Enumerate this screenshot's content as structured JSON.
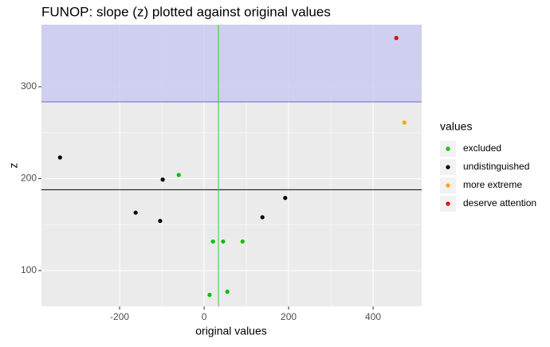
{
  "chart_data": {
    "type": "scatter",
    "title": "FUNOP: slope (z) plotted against original values",
    "x_label": "original values",
    "y_label": "z",
    "legend_title": "values",
    "xlim": [
      -385,
      515
    ],
    "ylim": [
      61,
      367.5
    ],
    "xticks": [
      -200,
      0,
      200,
      400
    ],
    "yticks": [
      100,
      200,
      300
    ],
    "grid": true,
    "series": [
      {
        "name": "excluded",
        "color": "#00c000",
        "x": [
          -60,
          21,
          45,
          91,
          13,
          55
        ],
        "values": [
          204,
          131.6,
          131.6,
          131.6,
          73.6,
          77
        ]
      },
      {
        "name": "undistinguished",
        "color": "#000000",
        "x": [
          -341,
          -98,
          -162,
          -104,
          138,
          192
        ],
        "values": [
          223,
          199,
          163,
          154,
          158,
          179
        ]
      },
      {
        "name": "more extreme",
        "color": "#ffa500",
        "x": [
          474
        ],
        "values": [
          261
        ]
      },
      {
        "name": "deserve attention",
        "color": "#e00000",
        "x": [
          455
        ],
        "values": [
          353
        ]
      }
    ],
    "hlines": [
      {
        "value": 188,
        "color": "#000000"
      },
      {
        "value": 283.5,
        "color": "#6a6ad0"
      }
    ],
    "shade_above": {
      "value": 283.5,
      "color": "#c8c8f0"
    },
    "vlines": [
      {
        "value": 34,
        "color": "#3cc83c"
      }
    ]
  }
}
